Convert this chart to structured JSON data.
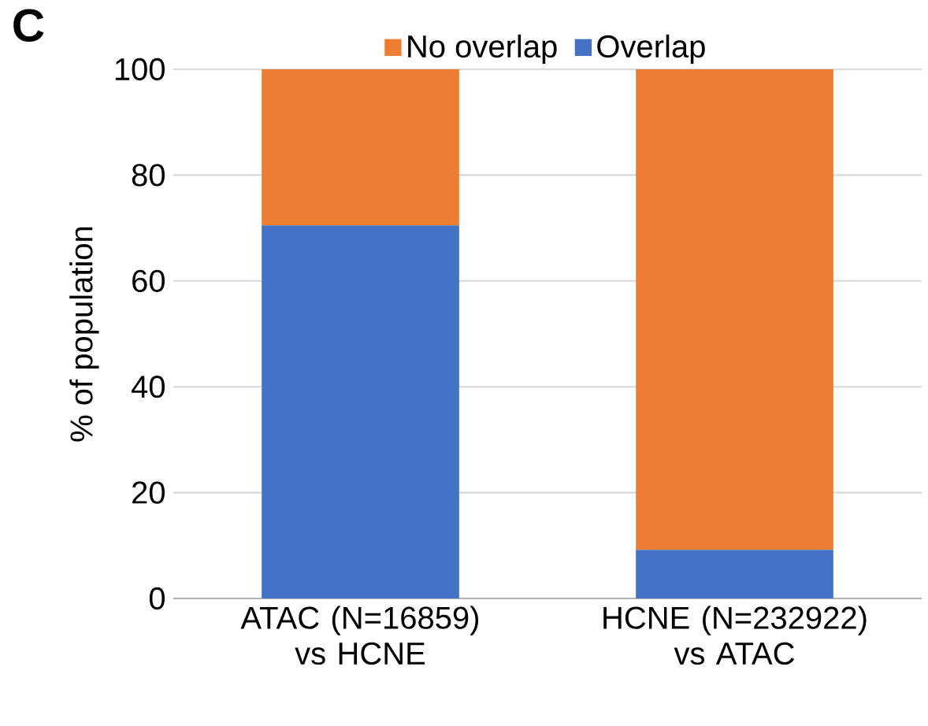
{
  "chart_data": {
    "type": "bar",
    "stacked": true,
    "ylabel": "% of population",
    "categories": [
      "ATAC (N=16859) vs HCNE",
      "HCNE (N=232922) vs ATAC"
    ],
    "series": [
      {
        "name": "Overlap",
        "color": "#4472c4",
        "values": [
          70.5,
          9.2
        ]
      },
      {
        "name": "No overlap",
        "color": "#ed7d31",
        "values": [
          29.5,
          90.8
        ]
      }
    ],
    "ylim": [
      0,
      100
    ],
    "yticks": [
      0,
      20,
      40,
      60,
      80,
      100
    ],
    "grid": "y",
    "legend": "top",
    "annotations": [
      "C"
    ]
  }
}
